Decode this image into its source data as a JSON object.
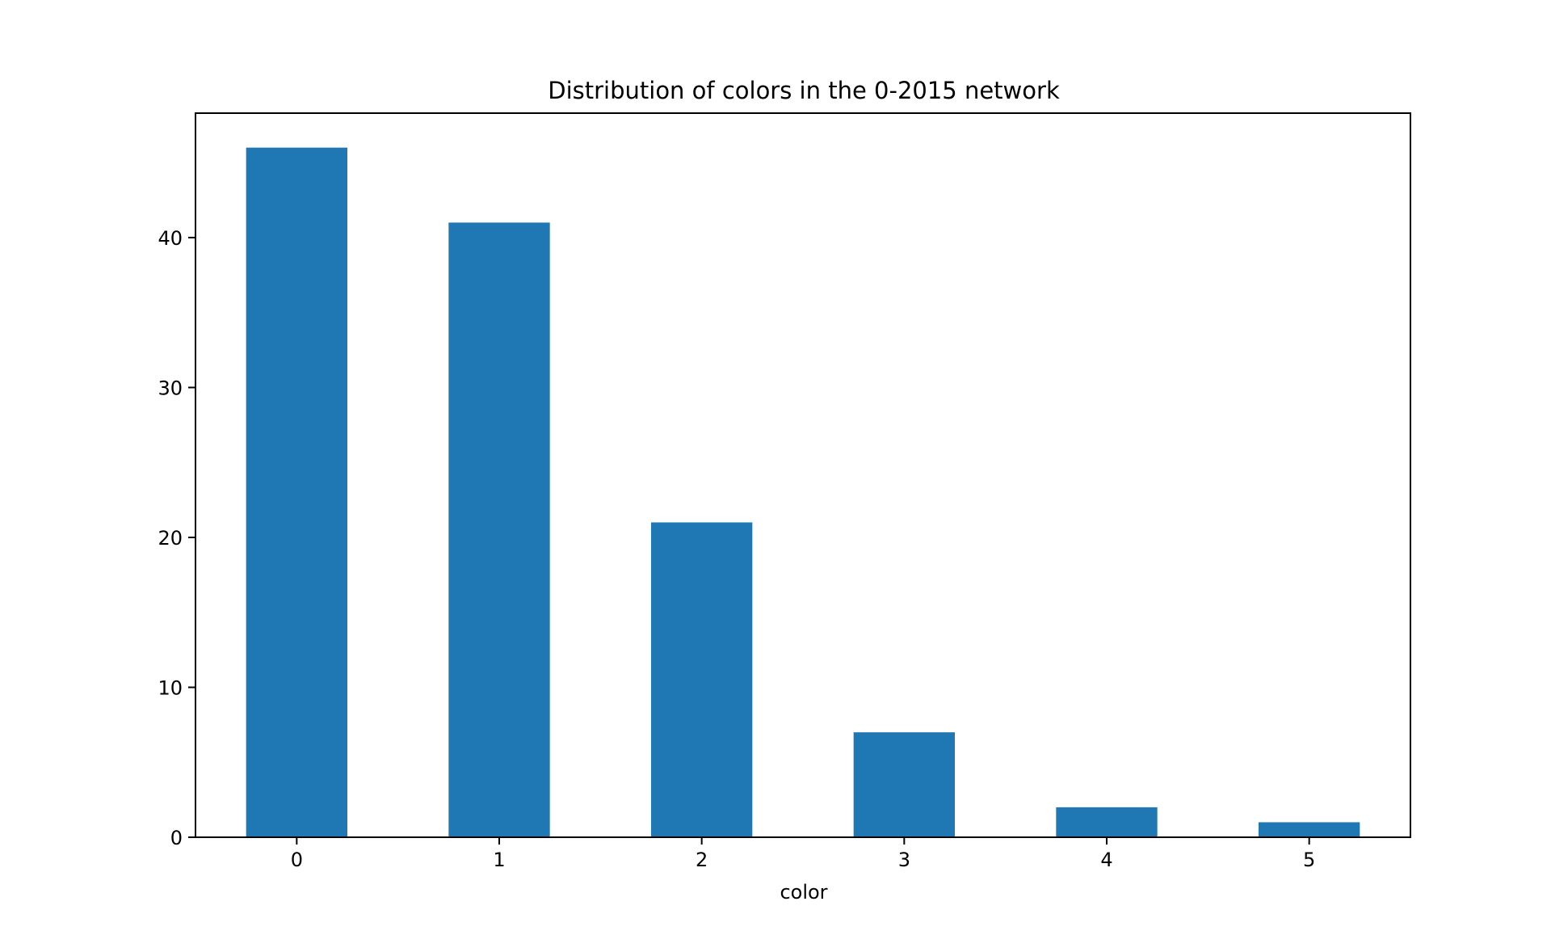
{
  "chart_data": {
    "type": "bar",
    "title": "Distribution of colors in the 0-2015 network",
    "xlabel": "color",
    "ylabel": "",
    "categories": [
      "0",
      "1",
      "2",
      "3",
      "4",
      "5"
    ],
    "values": [
      46,
      41,
      21,
      7,
      2,
      1
    ],
    "ylim": [
      0,
      48.3
    ],
    "yticks": [
      "0",
      "10",
      "20",
      "30",
      "40"
    ],
    "grid": false,
    "legend": "none",
    "bar_color": "#1f77b4"
  }
}
